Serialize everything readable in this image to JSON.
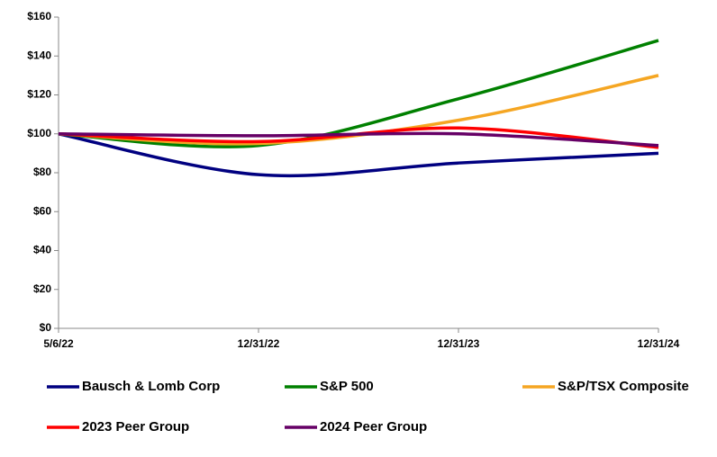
{
  "chart_data": {
    "type": "line",
    "categories": [
      "5/6/22",
      "12/31/22",
      "12/31/23",
      "12/31/24"
    ],
    "series": [
      {
        "name": "Bausch & Lomb Corp",
        "color": "#000080",
        "values": [
          100,
          79,
          85,
          90
        ]
      },
      {
        "name": "S&P 500",
        "color": "#008000",
        "values": [
          100,
          94,
          118,
          148
        ]
      },
      {
        "name": "S&P/TSX Composite",
        "color": "#f5a623",
        "values": [
          100,
          95,
          107,
          130
        ]
      },
      {
        "name": "2023 Peer Group",
        "color": "#ff0000",
        "values": [
          100,
          96,
          103,
          93
        ]
      },
      {
        "name": "2024 Peer Group",
        "color": "#660066",
        "values": [
          100,
          99,
          100,
          94
        ]
      }
    ],
    "ylim": [
      0,
      160
    ],
    "yticks": [
      {
        "value": 0,
        "label": "$0"
      },
      {
        "value": 20,
        "label": "$20"
      },
      {
        "value": 40,
        "label": "$40"
      },
      {
        "value": 60,
        "label": "$60"
      },
      {
        "value": 80,
        "label": "$80"
      },
      {
        "value": 100,
        "label": "$100"
      },
      {
        "value": 120,
        "label": "$120"
      },
      {
        "value": 140,
        "label": "$140"
      },
      {
        "value": 160,
        "label": "$160"
      }
    ],
    "grid": false,
    "legend": "bottom"
  }
}
